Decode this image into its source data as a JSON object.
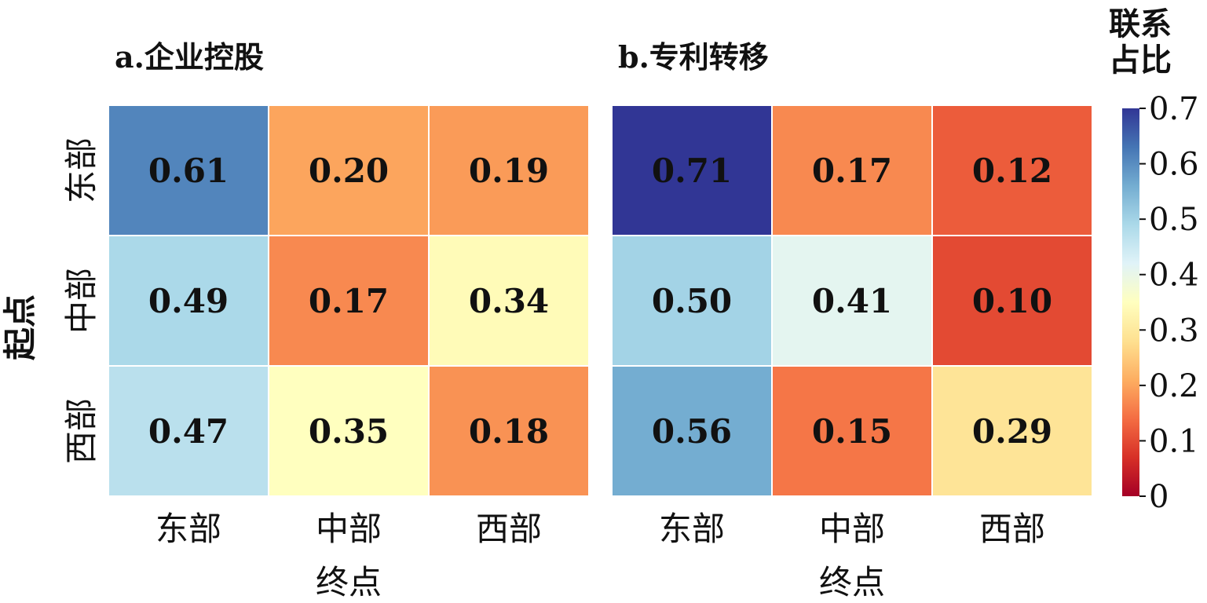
{
  "chart_data": [
    {
      "type": "heatmap",
      "title": "a.企业控股",
      "x_categories": [
        "东部",
        "中部",
        "西部"
      ],
      "y_categories": [
        "东部",
        "中部",
        "西部"
      ],
      "xlabel": "终点",
      "ylabel": "起点",
      "values": [
        [
          0.61,
          0.2,
          0.19
        ],
        [
          0.49,
          0.17,
          0.34
        ],
        [
          0.47,
          0.35,
          0.18
        ]
      ],
      "value_labels": [
        [
          "0.61",
          "0.20",
          "0.19"
        ],
        [
          "0.49",
          "0.17",
          "0.34"
        ],
        [
          "0.47",
          "0.35",
          "0.18"
        ]
      ]
    },
    {
      "type": "heatmap",
      "title": "b.专利转移",
      "x_categories": [
        "东部",
        "中部",
        "西部"
      ],
      "y_categories": [
        "东部",
        "中部",
        "西部"
      ],
      "xlabel": "终点",
      "ylabel": "",
      "values": [
        [
          0.71,
          0.17,
          0.12
        ],
        [
          0.5,
          0.41,
          0.1
        ],
        [
          0.56,
          0.15,
          0.29
        ]
      ],
      "value_labels": [
        [
          "0.71",
          "0.17",
          "0.12"
        ],
        [
          "0.50",
          "0.41",
          "0.10"
        ],
        [
          "0.56",
          "0.15",
          "0.29"
        ]
      ]
    }
  ],
  "colorbar": {
    "title_line1": "联系",
    "title_line2": "占比",
    "ticks": [
      0,
      0.1,
      0.2,
      0.3,
      0.4,
      0.5,
      0.6,
      0.7
    ],
    "tick_labels": [
      "0",
      "0.1",
      "0.2",
      "0.3",
      "0.4",
      "0.5",
      "0.6",
      "0.7"
    ],
    "range": [
      0,
      0.7
    ],
    "colormap": "RdYlBu",
    "colors": [
      "#a50026",
      "#d73027",
      "#f46d43",
      "#fdae61",
      "#fee090",
      "#ffffbf",
      "#e0f3f8",
      "#abd9e9",
      "#74add1",
      "#4575b4",
      "#313695"
    ]
  }
}
